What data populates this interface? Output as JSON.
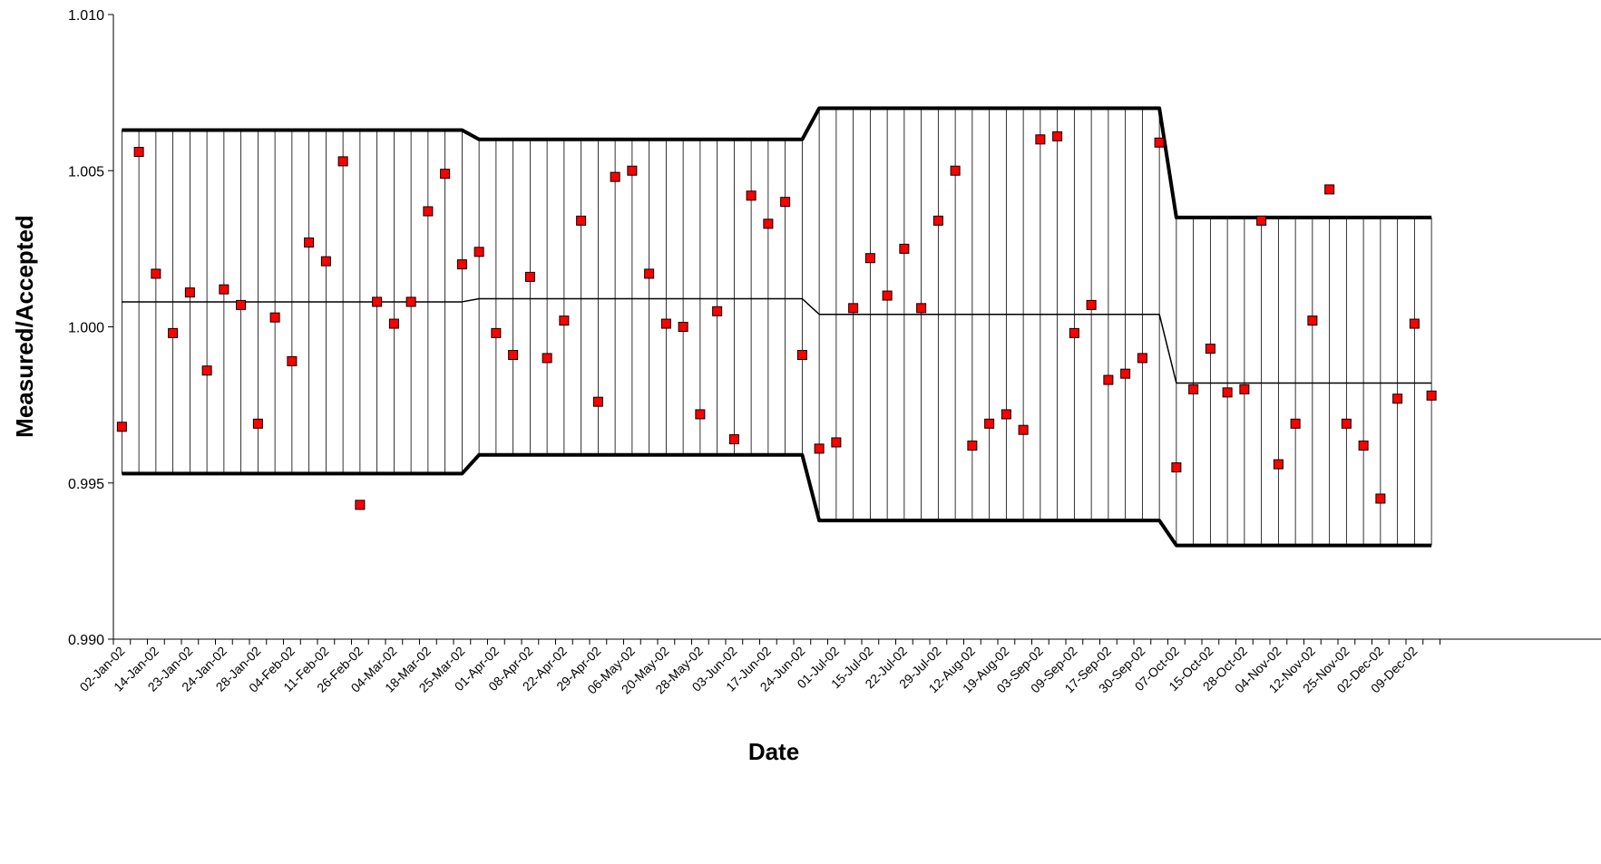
{
  "chart_data": {
    "type": "scatter",
    "xlabel": "Date",
    "ylabel": "Measured/Accepted",
    "ylim": [
      0.99,
      1.01
    ],
    "y_ticks": [
      "1.010",
      "1.005",
      "1.000",
      "0.995",
      "0.990"
    ],
    "y_tick_values": [
      1.01,
      1.005,
      1.0,
      0.995,
      0.99
    ],
    "x_tick_labels": [
      "02-Jan-02",
      "14-Jan-02",
      "23-Jan-02",
      "24-Jan-02",
      "28-Jan-02",
      "04-Feb-02",
      "11-Feb-02",
      "26-Feb-02",
      "04-Mar-02",
      "18-Mar-02",
      "25-Mar-02",
      "01-Apr-02",
      "08-Apr-02",
      "22-Apr-02",
      "29-Apr-02",
      "06-May-02",
      "20-May-02",
      "28-May-02",
      "03-Jun-02",
      "17-Jun-02",
      "24-Jun-02",
      "01-Jul-02",
      "15-Jul-02",
      "22-Jul-02",
      "29-Jul-02",
      "12-Aug-02",
      "19-Aug-02",
      "03-Sep-02",
      "09-Sep-02",
      "17-Sep-02",
      "30-Sep-02",
      "07-Oct-02",
      "15-Oct-02",
      "28-Oct-02",
      "04-Nov-02",
      "12-Nov-02",
      "25-Nov-02",
      "02-Dec-02",
      "09-Dec-02"
    ],
    "x_tick_every": 2,
    "grid": false,
    "legend": "none",
    "measurements": [
      0.9968,
      1.0056,
      1.0017,
      0.9998,
      1.0011,
      0.9986,
      1.0012,
      1.0007,
      0.9969,
      1.0003,
      0.9989,
      1.0027,
      1.0021,
      1.0053,
      0.9943,
      1.0008,
      1.0001,
      1.0008,
      1.0037,
      1.0049,
      1.002,
      1.0024,
      0.9998,
      0.9991,
      1.0016,
      0.999,
      1.0002,
      1.0034,
      0.9976,
      1.0048,
      1.005,
      1.0017,
      1.0001,
      1.0,
      0.9972,
      1.0005,
      0.9964,
      1.0042,
      1.0033,
      1.004,
      0.9991,
      0.9961,
      0.9963,
      1.0006,
      1.0022,
      1.001,
      1.0025,
      1.0006,
      1.0034,
      1.005,
      0.9962,
      0.9969,
      0.9972,
      0.9967,
      1.006,
      1.0061,
      0.9998,
      1.0007,
      0.9983,
      0.9985,
      0.999,
      1.0059,
      0.9955,
      0.998,
      0.9993,
      0.9979,
      0.998,
      1.0034,
      0.9956,
      0.9969,
      1.0002,
      1.0044,
      0.9969,
      0.9962,
      0.9945,
      0.9977,
      1.0001,
      0.9978
    ],
    "mean_line": [
      1.0008,
      1.0008,
      1.0008,
      1.0008,
      1.0008,
      1.0008,
      1.0008,
      1.0008,
      1.0008,
      1.0008,
      1.0008,
      1.0008,
      1.0008,
      1.0008,
      1.0008,
      1.0008,
      1.0008,
      1.0008,
      1.0008,
      1.0008,
      1.0008,
      1.0009,
      1.0009,
      1.0009,
      1.0009,
      1.0009,
      1.0009,
      1.0009,
      1.0009,
      1.0009,
      1.0009,
      1.0009,
      1.0009,
      1.0009,
      1.0009,
      1.0009,
      1.0009,
      1.0009,
      1.0009,
      1.0009,
      1.0009,
      1.0004,
      1.0004,
      1.0004,
      1.0004,
      1.0004,
      1.0004,
      1.0004,
      1.0004,
      1.0004,
      1.0004,
      1.0004,
      1.0004,
      1.0004,
      1.0004,
      1.0004,
      1.0004,
      1.0004,
      1.0004,
      1.0004,
      1.0004,
      1.0004,
      0.9982,
      0.9982,
      0.9982,
      0.9982,
      0.9982,
      0.9982,
      0.9982,
      0.9982,
      0.9982,
      0.9982,
      0.9982,
      0.9982,
      0.9982,
      0.9982,
      0.9982,
      0.9982
    ],
    "upper_limit": [
      1.0063,
      1.0063,
      1.0063,
      1.0063,
      1.0063,
      1.0063,
      1.0063,
      1.0063,
      1.0063,
      1.0063,
      1.0063,
      1.0063,
      1.0063,
      1.0063,
      1.0063,
      1.0063,
      1.0063,
      1.0063,
      1.0063,
      1.0063,
      1.0063,
      1.006,
      1.006,
      1.006,
      1.006,
      1.006,
      1.006,
      1.006,
      1.006,
      1.006,
      1.006,
      1.006,
      1.006,
      1.006,
      1.006,
      1.006,
      1.006,
      1.006,
      1.006,
      1.006,
      1.006,
      1.007,
      1.007,
      1.007,
      1.007,
      1.007,
      1.007,
      1.007,
      1.007,
      1.007,
      1.007,
      1.007,
      1.007,
      1.007,
      1.007,
      1.007,
      1.007,
      1.007,
      1.007,
      1.007,
      1.007,
      1.007,
      1.0035,
      1.0035,
      1.0035,
      1.0035,
      1.0035,
      1.0035,
      1.0035,
      1.0035,
      1.0035,
      1.0035,
      1.0035,
      1.0035,
      1.0035,
      1.0035,
      1.0035,
      1.0035
    ],
    "lower_limit": [
      0.9953,
      0.9953,
      0.9953,
      0.9953,
      0.9953,
      0.9953,
      0.9953,
      0.9953,
      0.9953,
      0.9953,
      0.9953,
      0.9953,
      0.9953,
      0.9953,
      0.9953,
      0.9953,
      0.9953,
      0.9953,
      0.9953,
      0.9953,
      0.9953,
      0.9959,
      0.9959,
      0.9959,
      0.9959,
      0.9959,
      0.9959,
      0.9959,
      0.9959,
      0.9959,
      0.9959,
      0.9959,
      0.9959,
      0.9959,
      0.9959,
      0.9959,
      0.9959,
      0.9959,
      0.9959,
      0.9959,
      0.9959,
      0.9938,
      0.9938,
      0.9938,
      0.9938,
      0.9938,
      0.9938,
      0.9938,
      0.9938,
      0.9938,
      0.9938,
      0.9938,
      0.9938,
      0.9938,
      0.9938,
      0.9938,
      0.9938,
      0.9938,
      0.9938,
      0.9938,
      0.9938,
      0.9938,
      0.993,
      0.993,
      0.993,
      0.993,
      0.993,
      0.993,
      0.993,
      0.993,
      0.993,
      0.993,
      0.993,
      0.993,
      0.993,
      0.993,
      0.993,
      0.993
    ],
    "colors": {
      "marker_fill": "#ff0000",
      "marker_stroke": "#000000",
      "limit_line": "#000000",
      "hatch_line": "#000000"
    }
  }
}
